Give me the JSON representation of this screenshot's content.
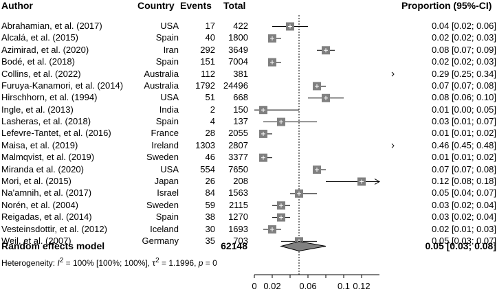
{
  "headers": {
    "author": "Author",
    "country": "Country",
    "events": "Events",
    "total": "Total",
    "proportion": "Proportion (95%-CI)"
  },
  "studies": [
    {
      "author": "Abrahamian, et al. (2017)",
      "country": "USA",
      "events": "17",
      "total": "422",
      "ci_text": "0.04 [0.02; 0.06]",
      "est": 0.04,
      "lo": 0.02,
      "hi": 0.06,
      "weight": 1.0
    },
    {
      "author": "Alcalá, et al. (2015)",
      "country": "Spain",
      "events": "40",
      "total": "1800",
      "ci_text": "0.02 [0.02; 0.03]",
      "est": 0.02,
      "lo": 0.02,
      "hi": 0.03,
      "weight": 1.0
    },
    {
      "author": "Azimirad, et al. (2020)",
      "country": "Iran",
      "events": "292",
      "total": "3649",
      "ci_text": "0.08 [0.07; 0.09]",
      "est": 0.08,
      "lo": 0.07,
      "hi": 0.09,
      "weight": 1.0
    },
    {
      "author": "Bodé, et al. (2018)",
      "country": "Spain",
      "events": "151",
      "total": "7004",
      "ci_text": "0.02 [0.02; 0.03]",
      "est": 0.02,
      "lo": 0.02,
      "hi": 0.03,
      "weight": 1.0
    },
    {
      "author": "Collins, et al. (2022)",
      "country": "Australia",
      "events": "112",
      "total": "381",
      "ci_text": "0.29 [0.25; 0.34]",
      "est": 0.29,
      "lo": 0.25,
      "hi": 0.34,
      "weight": 1.0
    },
    {
      "author": "Furuya-Kanamori, et al. (2014)",
      "country": "Australia",
      "events": "1792",
      "total": "24496",
      "ci_text": "0.07 [0.07; 0.08]",
      "est": 0.07,
      "lo": 0.07,
      "hi": 0.08,
      "weight": 1.0
    },
    {
      "author": "Hirschhorn, et al. (1994)",
      "country": "USA",
      "events": "51",
      "total": "668",
      "ci_text": "0.08 [0.06; 0.10]",
      "est": 0.08,
      "lo": 0.06,
      "hi": 0.1,
      "weight": 1.0
    },
    {
      "author": "Ingle, et al. (2013)",
      "country": "India",
      "events": "2",
      "total": "150",
      "ci_text": "0.01 [0.00; 0.05]",
      "est": 0.01,
      "lo": 0.0,
      "hi": 0.05,
      "weight": 1.0
    },
    {
      "author": "Lasheras, et al. (2018)",
      "country": "Spain",
      "events": "4",
      "total": "137",
      "ci_text": "0.03 [0.01; 0.07]",
      "est": 0.03,
      "lo": 0.01,
      "hi": 0.07,
      "weight": 1.0
    },
    {
      "author": "Lefevre-Tantet, et al. (2016)",
      "country": "France",
      "events": "28",
      "total": "2055",
      "ci_text": "0.01 [0.01; 0.02]",
      "est": 0.01,
      "lo": 0.01,
      "hi": 0.02,
      "weight": 1.0
    },
    {
      "author": "Maisa, et al. (2019)",
      "country": "Ireland",
      "events": "1303",
      "total": "2807",
      "ci_text": "0.46 [0.45; 0.48]",
      "est": 0.46,
      "lo": 0.45,
      "hi": 0.48,
      "weight": 1.0
    },
    {
      "author": "Malmqvist, et al. (2019)",
      "country": "Sweden",
      "events": "46",
      "total": "3377",
      "ci_text": "0.01 [0.01; 0.02]",
      "est": 0.01,
      "lo": 0.01,
      "hi": 0.02,
      "weight": 1.0
    },
    {
      "author": "Miranda et al. (2020)",
      "country": "USA",
      "events": "554",
      "total": "7650",
      "ci_text": "0.07 [0.07; 0.08]",
      "est": 0.07,
      "lo": 0.07,
      "hi": 0.08,
      "weight": 1.0
    },
    {
      "author": "Mori, et al. (2015)",
      "country": "Japan",
      "events": "26",
      "total": "208",
      "ci_text": "0.12 [0.08; 0.18]",
      "est": 0.12,
      "lo": 0.08,
      "hi": 0.18,
      "weight": 1.0
    },
    {
      "author": "Na'amnih, et al. (2017)",
      "country": "Israel",
      "events": "84",
      "total": "1563",
      "ci_text": "0.05 [0.04; 0.07]",
      "est": 0.05,
      "lo": 0.04,
      "hi": 0.07,
      "weight": 1.0
    },
    {
      "author": "Norén, et al. (2004)",
      "country": "Sweden",
      "events": "59",
      "total": "2115",
      "ci_text": "0.03 [0.02; 0.04]",
      "est": 0.03,
      "lo": 0.02,
      "hi": 0.04,
      "weight": 1.0
    },
    {
      "author": "Reigadas, et al. (2014)",
      "country": "Spain",
      "events": "38",
      "total": "1270",
      "ci_text": "0.03 [0.02; 0.04]",
      "est": 0.03,
      "lo": 0.02,
      "hi": 0.04,
      "weight": 1.0
    },
    {
      "author": "Vesteinsdottir, et al. (2012)",
      "country": "Iceland",
      "events": "30",
      "total": "1693",
      "ci_text": "0.02 [0.01; 0.03]",
      "est": 0.02,
      "lo": 0.01,
      "hi": 0.03,
      "weight": 1.0
    },
    {
      "author": "Weil, et al. (2007)",
      "country": "Germany",
      "events": "35",
      "total": "703",
      "ci_text": "0.05 [0.03; 0.07]",
      "est": 0.05,
      "lo": 0.03,
      "hi": 0.07,
      "weight": 1.0
    }
  ],
  "summary": {
    "label": "Random effects model",
    "total": "62148",
    "ci_text": "0.05 [0.03; 0.08]",
    "est": 0.05,
    "lo": 0.03,
    "hi": 0.08
  },
  "heterogeneity": {
    "prefix": "Heterogeneity: ",
    "i2_symbol": "I",
    "i2_sup": "2",
    "i2_text": " = 100% [100%; 100%], ",
    "tau_symbol": "τ",
    "tau_sup": "2",
    "tau_text": " = 1.1996, ",
    "p_symbol": "p",
    "p_text": " = 0"
  },
  "colors": {
    "square": "#808080",
    "diamond": "#808080",
    "line": "#000000"
  },
  "chart_data": {
    "type": "forest",
    "title": "",
    "xlabel": "",
    "xlim": [
      0,
      0.14
    ],
    "xticks": [
      0,
      0.02,
      0.04,
      0.06,
      0.08,
      0.1,
      0.12
    ],
    "xtick_labels": [
      "0",
      "0.02",
      "",
      "0.06",
      "",
      "0.1",
      "0.12"
    ],
    "reference_line": 0.05,
    "categories": [
      "Abrahamian, et al. (2017)",
      "Alcalá, et al. (2015)",
      "Azimirad, et al. (2020)",
      "Bodé, et al. (2018)",
      "Collins, et al. (2022)",
      "Furuya-Kanamori, et al. (2014)",
      "Hirschhorn, et al. (1994)",
      "Ingle, et al. (2013)",
      "Lasheras, et al. (2018)",
      "Lefevre-Tantet, et al. (2016)",
      "Maisa, et al. (2019)",
      "Malmqvist, et al. (2019)",
      "Miranda et al. (2020)",
      "Mori, et al. (2015)",
      "Na'amnih, et al. (2017)",
      "Norén, et al. (2004)",
      "Reigadas, et al. (2014)",
      "Vesteinsdottir, et al. (2012)",
      "Weil, et al. (2007)"
    ],
    "values": [
      0.04,
      0.02,
      0.08,
      0.02,
      0.29,
      0.07,
      0.08,
      0.01,
      0.03,
      0.01,
      0.46,
      0.01,
      0.07,
      0.12,
      0.05,
      0.03,
      0.03,
      0.02,
      0.05
    ],
    "lower": [
      0.02,
      0.02,
      0.07,
      0.02,
      0.25,
      0.07,
      0.06,
      0.0,
      0.01,
      0.01,
      0.45,
      0.01,
      0.07,
      0.08,
      0.04,
      0.02,
      0.02,
      0.01,
      0.03
    ],
    "upper": [
      0.06,
      0.03,
      0.09,
      0.03,
      0.34,
      0.08,
      0.1,
      0.05,
      0.07,
      0.02,
      0.48,
      0.02,
      0.08,
      0.18,
      0.07,
      0.04,
      0.04,
      0.03,
      0.07
    ],
    "summary": {
      "value": 0.05,
      "lower": 0.03,
      "upper": 0.08
    }
  }
}
